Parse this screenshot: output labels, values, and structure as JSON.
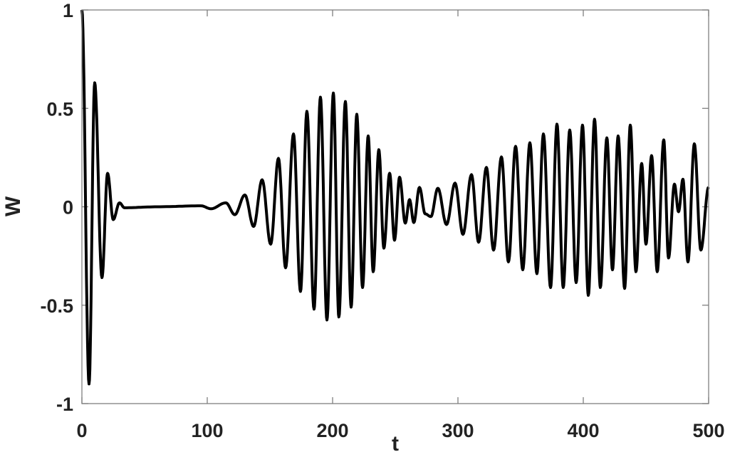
{
  "chart_data": {
    "type": "line",
    "title": "",
    "xlabel": "t",
    "ylabel": "W",
    "xlim": [
      0,
      500
    ],
    "ylim": [
      -1,
      1
    ],
    "xticks": [
      0,
      100,
      200,
      300,
      400,
      500
    ],
    "xtick_labels": [
      "0",
      "100",
      "200",
      "300",
      "400",
      "500"
    ],
    "yticks": [
      1,
      0.5,
      0,
      -0.5,
      -1
    ],
    "ytick_labels": [
      "1",
      "0.5",
      "0",
      "-0.5",
      "-1"
    ],
    "grid": false,
    "line_color": "#000000",
    "frame_color": "#7f7f7f",
    "series": [
      {
        "points": [
          [
            0,
            1
          ],
          [
            5.7,
            -0.9
          ],
          [
            10.2,
            0.63
          ],
          [
            16,
            -0.36
          ],
          [
            20.5,
            0.17
          ],
          [
            25,
            -0.065
          ],
          [
            30,
            0.02
          ],
          [
            34,
            -0.005
          ],
          [
            60,
            0
          ],
          [
            95,
            0.005
          ],
          [
            103,
            -0.01
          ],
          [
            114.8,
            0.02
          ],
          [
            122,
            -0.04
          ],
          [
            130,
            0.06
          ],
          [
            137,
            -0.1
          ],
          [
            143.8,
            0.137
          ],
          [
            150.6,
            -0.19
          ],
          [
            156.8,
            0.246
          ],
          [
            162.5,
            -0.31
          ],
          [
            168.8,
            0.37
          ],
          [
            174.4,
            -0.43
          ],
          [
            179.5,
            0.485
          ],
          [
            185.2,
            -0.52
          ],
          [
            190.3,
            0.557
          ],
          [
            195.5,
            -0.575
          ],
          [
            200.6,
            0.578
          ],
          [
            205,
            -0.56
          ],
          [
            210.2,
            0.535
          ],
          [
            214.8,
            -0.51
          ],
          [
            219.3,
            0.47
          ],
          [
            223.9,
            -0.41
          ],
          [
            228.4,
            0.36
          ],
          [
            232.4,
            -0.33
          ],
          [
            236.9,
            0.29
          ],
          [
            240.9,
            -0.21
          ],
          [
            245.5,
            0.17
          ],
          [
            249.4,
            -0.17
          ],
          [
            253.4,
            0.15
          ],
          [
            258,
            -0.083
          ],
          [
            261.4,
            0.036
          ],
          [
            264.8,
            -0.08
          ],
          [
            269.3,
            0.098
          ],
          [
            273.9,
            -0.036
          ],
          [
            278.4,
            -0.05
          ],
          [
            284,
            0.094
          ],
          [
            290.9,
            -0.09
          ],
          [
            297.7,
            0.12
          ],
          [
            304,
            -0.14
          ],
          [
            310.8,
            0.163
          ],
          [
            316.5,
            -0.18
          ],
          [
            322.7,
            0.2
          ],
          [
            328.4,
            -0.22
          ],
          [
            334.7,
            0.253
          ],
          [
            340.3,
            -0.28
          ],
          [
            346,
            0.307
          ],
          [
            351.7,
            -0.32
          ],
          [
            357.4,
            0.325
          ],
          [
            363,
            -0.34
          ],
          [
            368.2,
            0.37
          ],
          [
            373.9,
            -0.41
          ],
          [
            379,
            0.42
          ],
          [
            384,
            -0.41
          ],
          [
            389.2,
            0.39
          ],
          [
            394.3,
            -0.385
          ],
          [
            399.4,
            0.415
          ],
          [
            404,
            -0.45
          ],
          [
            409,
            0.445
          ],
          [
            413.6,
            -0.41
          ],
          [
            418.8,
            0.35
          ],
          [
            423.3,
            -0.32
          ],
          [
            427.8,
            0.36
          ],
          [
            433,
            -0.415
          ],
          [
            437.5,
            0.415
          ],
          [
            442,
            -0.33
          ],
          [
            446.6,
            0.22
          ],
          [
            450,
            -0.19
          ],
          [
            454.5,
            0.26
          ],
          [
            459,
            -0.33
          ],
          [
            464.2,
            0.34
          ],
          [
            468,
            -0.26
          ],
          [
            472.7,
            0.115
          ],
          [
            476,
            -0.025
          ],
          [
            479.5,
            0.14
          ],
          [
            483.5,
            -0.28
          ],
          [
            488.6,
            0.32
          ],
          [
            493.8,
            -0.22
          ],
          [
            500,
            0.1
          ]
        ]
      }
    ]
  }
}
